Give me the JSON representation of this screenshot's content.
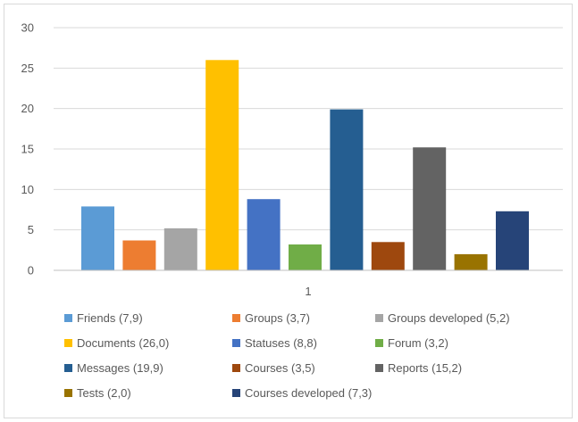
{
  "chart_data": {
    "type": "bar",
    "categories": [
      "1"
    ],
    "ylim": [
      0,
      30
    ],
    "yticks": [
      0,
      5,
      10,
      15,
      20,
      25,
      30
    ],
    "grid": true,
    "legend_position": "bottom",
    "series": [
      {
        "name": "Friends (7,9)",
        "value": 7.9,
        "color": "#5b9bd5"
      },
      {
        "name": "Groups (3,7)",
        "value": 3.7,
        "color": "#ed7d31"
      },
      {
        "name": "Groups developed (5,2)",
        "value": 5.2,
        "color": "#a5a5a5"
      },
      {
        "name": "Documents (26,0)",
        "value": 26.0,
        "color": "#ffc000"
      },
      {
        "name": "Statuses (8,8)",
        "value": 8.8,
        "color": "#4472c4"
      },
      {
        "name": "Forum (3,2)",
        "value": 3.2,
        "color": "#70ad47"
      },
      {
        "name": "Messages (19,9)",
        "value": 19.9,
        "color": "#255e91"
      },
      {
        "name": "Courses (3,5)",
        "value": 3.5,
        "color": "#9e480e"
      },
      {
        "name": "Reports (15,2)",
        "value": 15.2,
        "color": "#636363"
      },
      {
        "name": "Tests (2,0)",
        "value": 2.0,
        "color": "#997300"
      },
      {
        "name": "Courses developed (7,3)",
        "value": 7.3,
        "color": "#264478"
      }
    ]
  }
}
